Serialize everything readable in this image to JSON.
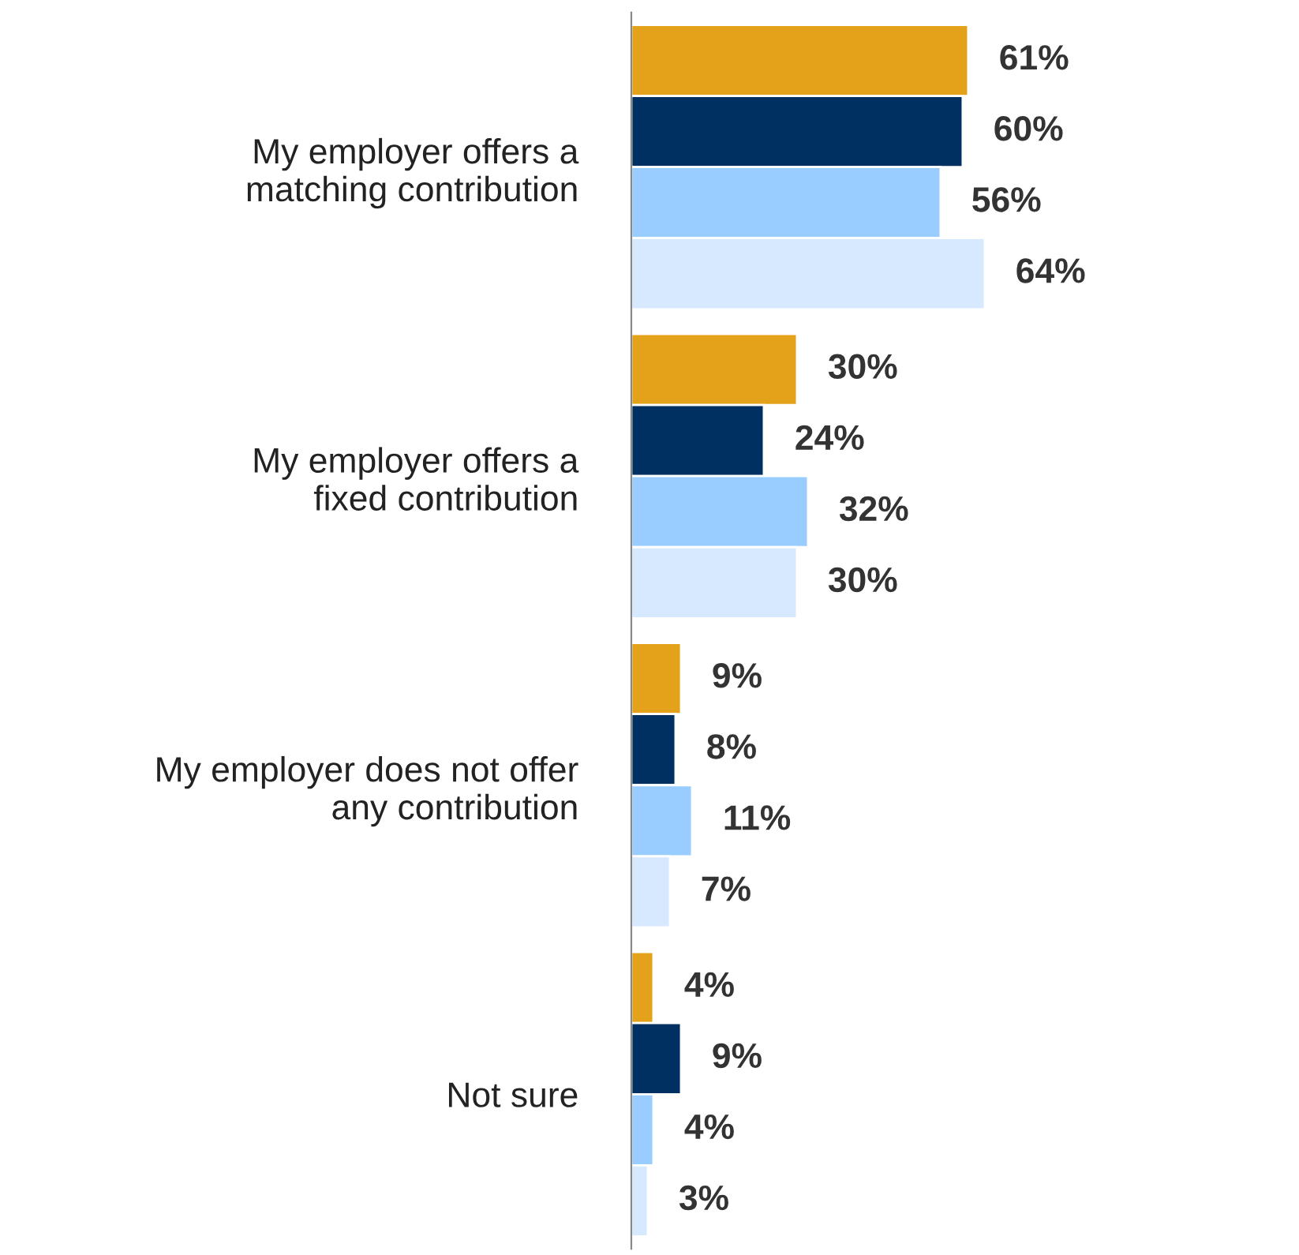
{
  "chart_data": {
    "type": "bar",
    "orientation": "horizontal",
    "categories": [
      "My employer offers a\nmatching contribution",
      "My employer offers a\nfixed contribution",
      "My employer does not offer\nany contribution",
      "Not sure"
    ],
    "series": [
      {
        "color": "#e3a21a",
        "values": [
          61,
          30,
          9,
          4
        ],
        "value_labels": [
          "61%",
          "30%",
          "9%",
          "4%"
        ]
      },
      {
        "color": "#003062",
        "values": [
          60,
          24,
          8,
          9
        ],
        "value_labels": [
          "60%",
          "24%",
          "8%",
          "9%"
        ]
      },
      {
        "color": "#99ccff",
        "values": [
          56,
          32,
          11,
          4
        ],
        "value_labels": [
          "56%",
          "32%",
          "11%",
          "4%"
        ]
      },
      {
        "color": "#d6e9ff",
        "values": [
          64,
          30,
          7,
          3
        ],
        "value_labels": [
          "64%",
          "30%",
          "7%",
          "3%"
        ]
      }
    ],
    "tick_labels": "y"
  }
}
